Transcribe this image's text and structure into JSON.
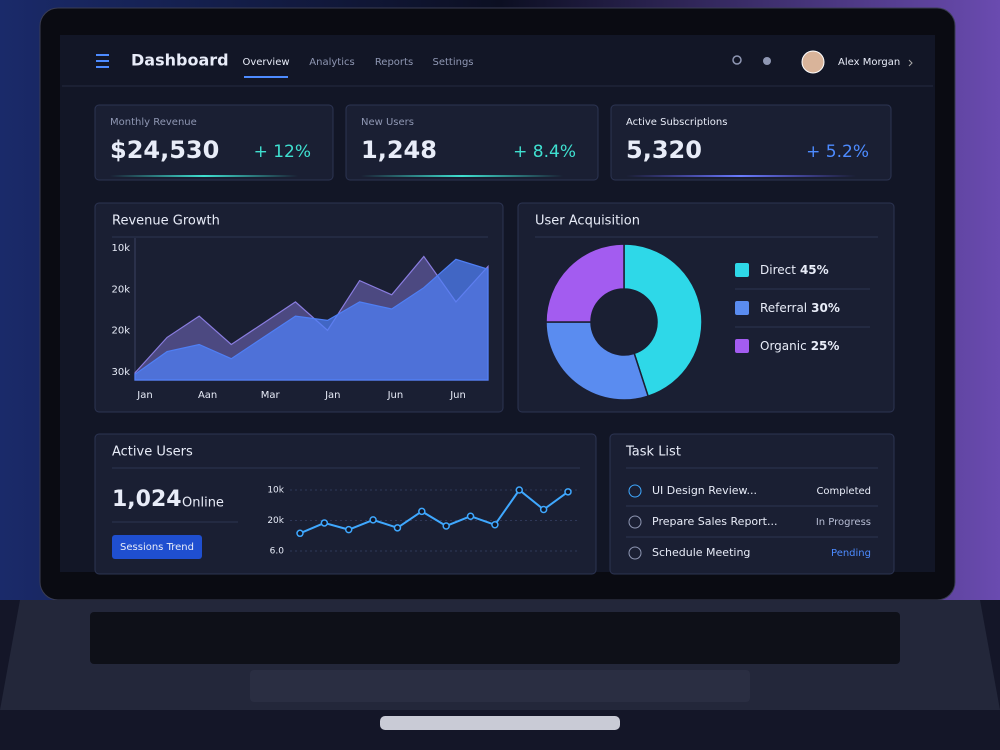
{
  "header": {
    "title": "Dashboard",
    "nav": [
      "Overview",
      "Analytics",
      "Reports",
      "Settings"
    ],
    "user": "Alex Morgan"
  },
  "kpis": [
    {
      "label": "Monthly Revenue",
      "value": "$24,530",
      "change": "+ 12%",
      "color": "#3fe0d0"
    },
    {
      "label": "New Users",
      "value": "1,248",
      "change": "+ 8.4%",
      "color": "#3fe0d0"
    },
    {
      "label": "Active Subscriptions",
      "value": "5,320",
      "change": "+ 5.2%",
      "color": "#4d8bff"
    }
  ],
  "revenue_growth": {
    "type": "area",
    "title": "Revenue Growth",
    "y_labels": [
      "10k",
      "20k",
      "20k",
      "30k"
    ],
    "x_labels": [
      "Jan",
      "Aan",
      "Mar",
      "Jan",
      "Jun",
      "Jun"
    ],
    "series": [
      {
        "color": "#8a7de0",
        "values": [
          5,
          30,
          45,
          25,
          40,
          55,
          35,
          70,
          60,
          87,
          55,
          80
        ]
      },
      {
        "color": "#4f7ff5",
        "values": [
          4,
          20,
          25,
          15,
          30,
          45,
          42,
          55,
          50,
          65,
          85,
          78
        ]
      }
    ]
  },
  "user_acquisition": {
    "type": "donut",
    "title": "User Acquisition",
    "categories": [
      "Direct",
      "Referral",
      "Organic"
    ],
    "values": [
      45,
      30,
      25
    ],
    "value_labels": [
      "45%",
      "30%",
      "25%"
    ],
    "colors": [
      "#2ed8e8",
      "#5a8cf0",
      "#a35cf0"
    ]
  },
  "active_users": {
    "title": "Active Users",
    "count": "1,024",
    "count_label": "Online",
    "button": "Sessions Trend",
    "chart": {
      "type": "line",
      "y_labels": [
        "10k",
        "20k",
        "6.0"
      ],
      "color": "#3fa8ff",
      "values": [
        29,
        46,
        35,
        51,
        38,
        65,
        41,
        57,
        43,
        100,
        68,
        97
      ]
    }
  },
  "task_list": {
    "title": "Task List",
    "tasks": [
      {
        "name": "UI Design Review...",
        "status": "Completed"
      },
      {
        "name": "Prepare Sales Report...",
        "status": "In Progress"
      },
      {
        "name": "Schedule Meeting",
        "status": "Pending"
      }
    ]
  }
}
